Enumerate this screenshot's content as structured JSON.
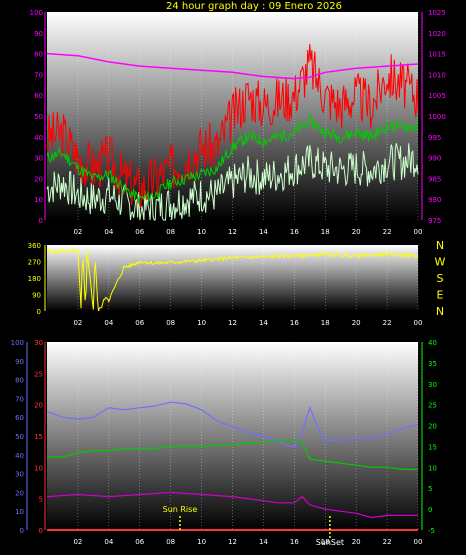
{
  "title": "24 hour graph day : 09 Enero 2026",
  "colors": {
    "title": "#ffff00",
    "grid_x": "#ffffff",
    "left_axis_top": "#ff00ff",
    "right_axis_top": "#ff00ff",
    "wind_gust": "#ff0000",
    "wind_avg": "#00cc00",
    "wind_min": "#ccffcc",
    "pressure": "#ff00ff",
    "direction": "#ffff00",
    "compass": "#ffff00",
    "humidity": "#7070ff",
    "temp": "#ff3333",
    "dewpoint_like": "#cc00cc",
    "bottom_green": "#00cc00",
    "bottom_right_axis": "#00ff00",
    "sun_marker": "#ffff00"
  },
  "chart_data": [
    {
      "type": "line",
      "name": "wind-pressure",
      "x_ticks": [
        "02",
        "04",
        "06",
        "08",
        "10",
        "12",
        "14",
        "16",
        "18",
        "20",
        "22",
        "00"
      ],
      "y_left_ticks": [
        "100",
        "90",
        "80",
        "70",
        "60",
        "50",
        "40",
        "30",
        "20",
        "10",
        "0"
      ],
      "y_right_ticks": [
        "1025",
        "1020",
        "1015",
        "1010",
        "1005",
        "1000",
        "995",
        "990",
        "985",
        "980",
        "975"
      ],
      "ylim_left": [
        0,
        100
      ],
      "ylim_right": [
        975,
        1025
      ],
      "xlim_hours": [
        0,
        24
      ],
      "series": [
        {
          "key": "pressure",
          "axis": "right",
          "hours": [
            0,
            2,
            4,
            6,
            8,
            10,
            12,
            14,
            16,
            17,
            18,
            20,
            22,
            24
          ],
          "values": [
            1015,
            1014.5,
            1013,
            1012,
            1011.5,
            1011,
            1010.5,
            1009.5,
            1009,
            1009.3,
            1010.5,
            1011.5,
            1012,
            1012.5
          ]
        },
        {
          "key": "gust",
          "axis": "left",
          "hours": [
            0,
            1,
            2,
            3,
            4,
            5,
            6,
            7,
            8,
            9,
            10,
            11,
            12,
            13,
            14,
            15,
            16,
            17,
            18,
            19,
            20,
            21,
            22,
            23,
            24
          ],
          "values": [
            40,
            42,
            30,
            25,
            30,
            20,
            15,
            20,
            25,
            30,
            35,
            35,
            50,
            60,
            55,
            58,
            60,
            75,
            60,
            55,
            60,
            55,
            70,
            65,
            60
          ]
        },
        {
          "key": "avg",
          "axis": "left",
          "hours": [
            0,
            1,
            2,
            3,
            4,
            5,
            6,
            7,
            8,
            9,
            10,
            11,
            12,
            13,
            14,
            15,
            16,
            17,
            18,
            19,
            20,
            21,
            22,
            23,
            24
          ],
          "values": [
            30,
            32,
            25,
            20,
            22,
            15,
            10,
            12,
            18,
            20,
            22,
            25,
            35,
            40,
            38,
            40,
            42,
            48,
            42,
            40,
            42,
            40,
            45,
            45,
            45
          ]
        },
        {
          "key": "min",
          "axis": "left",
          "hours": [
            0,
            1,
            2,
            3,
            4,
            5,
            6,
            7,
            8,
            9,
            10,
            11,
            12,
            13,
            14,
            15,
            16,
            17,
            18,
            19,
            20,
            21,
            22,
            23,
            24
          ],
          "values": [
            15,
            18,
            12,
            10,
            12,
            8,
            5,
            6,
            8,
            10,
            12,
            12,
            18,
            22,
            20,
            22,
            25,
            28,
            25,
            24,
            25,
            24,
            28,
            28,
            30
          ]
        }
      ]
    },
    {
      "type": "line",
      "name": "wind-direction",
      "x_ticks": [
        "02",
        "04",
        "06",
        "08",
        "10",
        "12",
        "14",
        "16",
        "18",
        "20",
        "22",
        "00"
      ],
      "y_left_ticks": [
        "360",
        "270",
        "180",
        "90",
        "0"
      ],
      "ylim_left": [
        0,
        360
      ],
      "compass_labels": [
        "N",
        "W",
        "S",
        "E",
        "N"
      ],
      "series": [
        {
          "key": "direction",
          "hours": [
            0,
            0.5,
            1,
            1.5,
            2,
            2.2,
            2.3,
            2.5,
            2.6,
            3,
            3.1,
            3.3,
            3.5,
            3.8,
            4,
            4.5,
            5,
            5.5,
            6,
            7,
            8,
            10,
            12,
            14,
            16,
            18,
            20,
            22,
            24
          ],
          "values": [
            330,
            320,
            330,
            325,
            330,
            10,
            330,
            0,
            330,
            10,
            320,
            0,
            20,
            80,
            60,
            150,
            240,
            250,
            270,
            260,
            265,
            275,
            290,
            295,
            300,
            310,
            300,
            310,
            300
          ]
        }
      ]
    },
    {
      "type": "line",
      "name": "temp-humidity",
      "x_ticks": [
        "02",
        "04",
        "06",
        "08",
        "10",
        "12",
        "14",
        "16",
        "18",
        "20",
        "22",
        "00"
      ],
      "y_far_left_ticks": [
        "100",
        "90",
        "80",
        "70",
        "60",
        "50",
        "40",
        "30",
        "20",
        "10",
        "0"
      ],
      "y_left_ticks": [
        "30",
        "25",
        "20",
        "15",
        "10",
        "5",
        "0"
      ],
      "y_right_ticks": [
        "40",
        "35",
        "30",
        "25",
        "20",
        "15",
        "10",
        "5",
        "0",
        "-5"
      ],
      "ylim_far_left": [
        0,
        100
      ],
      "ylim_left": [
        0,
        30
      ],
      "ylim_right": [
        -5,
        40
      ],
      "annotations": [
        "Sun Rise",
        "SunSet"
      ],
      "series": [
        {
          "key": "humidity",
          "axis": "far_left",
          "hours": [
            0,
            1,
            2,
            3,
            4,
            5,
            6,
            7,
            8,
            9,
            10,
            11,
            12,
            13,
            14,
            15,
            15.5,
            16,
            16.5,
            17,
            17.5,
            18,
            19,
            20,
            21,
            22,
            23,
            24
          ],
          "values": [
            63,
            60,
            59,
            60,
            65,
            64,
            65,
            66,
            68,
            67,
            64,
            58,
            55,
            52,
            50,
            47,
            45,
            44,
            52,
            65,
            55,
            47,
            48,
            49,
            49,
            51,
            54,
            56
          ]
        },
        {
          "key": "green",
          "axis": "right",
          "hours": [
            0,
            1,
            2,
            3,
            4,
            5,
            6,
            7,
            8,
            10,
            12,
            14,
            15,
            16,
            16.5,
            17,
            18,
            19,
            20,
            21,
            22,
            23,
            24
          ],
          "values": [
            12.5,
            12.5,
            13.5,
            14,
            14,
            14.5,
            14.5,
            14.5,
            15,
            15,
            15.5,
            16,
            16.5,
            16.5,
            16,
            12,
            11.5,
            11,
            10.5,
            10,
            10,
            9.5,
            9.5
          ]
        },
        {
          "key": "dewpoint",
          "axis": "right",
          "hours": [
            0,
            2,
            4,
            6,
            8,
            10,
            12,
            14,
            15,
            16,
            16.5,
            17,
            18,
            19,
            20,
            21,
            22,
            23,
            24
          ],
          "values": [
            3,
            3.5,
            3,
            3.5,
            4,
            3.5,
            3,
            2,
            1.5,
            1.5,
            3,
            1,
            0,
            -0.5,
            -1,
            -2,
            -1.5,
            -1.5,
            -1.5
          ]
        },
        {
          "key": "temp",
          "axis": "left",
          "hours": [
            0,
            24
          ],
          "values": [
            0,
            0
          ]
        }
      ]
    }
  ]
}
